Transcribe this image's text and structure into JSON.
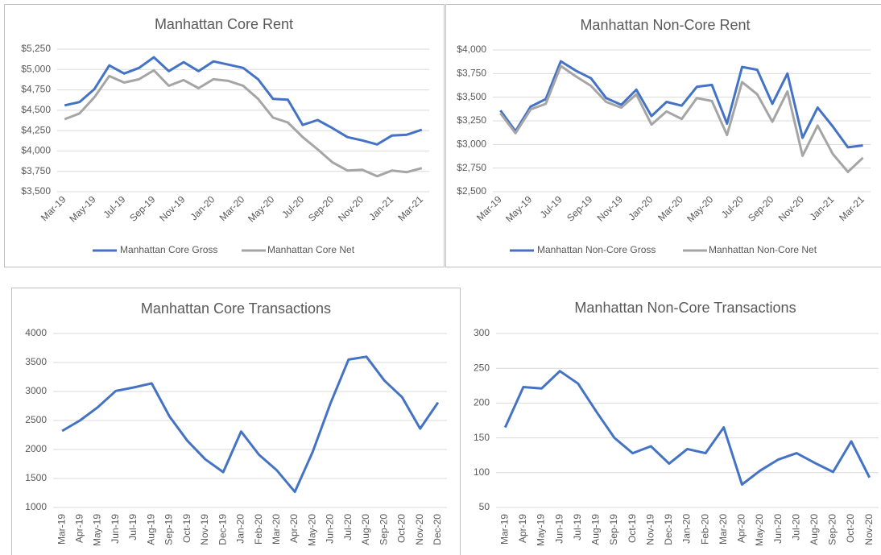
{
  "chart_data": [
    {
      "type": "line",
      "title": "Manhattan Core Rent",
      "categories": [
        "Mar-19",
        null,
        "May-19",
        null,
        "Jul-19",
        null,
        "Sep-19",
        null,
        "Nov-19",
        null,
        "Jan-20",
        null,
        "Mar-20",
        null,
        "May-20",
        null,
        "Jul-20",
        null,
        "Sep-20",
        null,
        "Nov-20",
        null,
        "Jan-21",
        null,
        "Mar-21"
      ],
      "series": [
        {
          "name": "Manhattan Core Gross",
          "color": "#4472c4",
          "values": [
            4560,
            4600,
            4760,
            5050,
            4950,
            5020,
            5150,
            4980,
            5090,
            4980,
            5100,
            5060,
            5020,
            4880,
            4640,
            4630,
            4320,
            4380,
            4280,
            4170,
            4130,
            4080,
            4190,
            4200,
            4260
          ]
        },
        {
          "name": "Manhattan Core Net",
          "color": "#a5a5a5",
          "values": [
            4390,
            4460,
            4660,
            4920,
            4840,
            4880,
            4990,
            4800,
            4870,
            4770,
            4880,
            4860,
            4800,
            4640,
            4410,
            4350,
            4170,
            4020,
            3860,
            3760,
            3770,
            3690,
            3760,
            3740,
            3790
          ]
        }
      ],
      "ylim": [
        3500,
        5250
      ],
      "yticks": [
        {
          "value": 3500,
          "label": "$3,500"
        },
        {
          "value": 3750,
          "label": "$3,750"
        },
        {
          "value": 4000,
          "label": "$4,000"
        },
        {
          "value": 4250,
          "label": "$4,250"
        },
        {
          "value": 4500,
          "label": "$4,500"
        },
        {
          "value": 4750,
          "label": "$4,750"
        },
        {
          "value": 5000,
          "label": "$5,000"
        },
        {
          "value": 5250,
          "label": "$5,250"
        }
      ],
      "grid": true,
      "legend": "bottom"
    },
    {
      "type": "line",
      "title": "Manhattan Non-Core Rent",
      "categories": [
        "Mar-19",
        null,
        "May-19",
        null,
        "Jul-19",
        null,
        "Sep-19",
        null,
        "Nov-19",
        null,
        "Jan-20",
        null,
        "Mar-20",
        null,
        "May-20",
        null,
        "Jul-20",
        null,
        "Sep-20",
        null,
        "Nov-20",
        null,
        "Jan-21",
        null,
        "Mar-21"
      ],
      "series": [
        {
          "name": "Manhattan Non-Core Gross",
          "color": "#4472c4",
          "values": [
            3360,
            3140,
            3400,
            3480,
            3880,
            3780,
            3700,
            3490,
            3420,
            3580,
            3300,
            3450,
            3410,
            3610,
            3630,
            3220,
            3820,
            3790,
            3430,
            3750,
            3070,
            3390,
            3190,
            2970,
            2990
          ]
        },
        {
          "name": "Manhattan Non-Core Net",
          "color": "#a5a5a5",
          "values": [
            3330,
            3120,
            3370,
            3430,
            3830,
            3720,
            3620,
            3450,
            3390,
            3530,
            3210,
            3350,
            3270,
            3490,
            3460,
            3100,
            3660,
            3530,
            3240,
            3560,
            2880,
            3200,
            2900,
            2710,
            2860
          ]
        }
      ],
      "ylim": [
        2500,
        4000
      ],
      "yticks": [
        {
          "value": 2500,
          "label": "$2,500"
        },
        {
          "value": 2750,
          "label": "$2,750"
        },
        {
          "value": 3000,
          "label": "$3,000"
        },
        {
          "value": 3250,
          "label": "$3,250"
        },
        {
          "value": 3500,
          "label": "$3,500"
        },
        {
          "value": 3750,
          "label": "$3,750"
        },
        {
          "value": 4000,
          "label": "$4,000"
        }
      ],
      "grid": true,
      "legend": "bottom"
    },
    {
      "type": "line",
      "title": "Manhattan Core Transactions",
      "categories": [
        "Mar-19",
        "Apr-19",
        "May-19",
        "Jun-19",
        "Jul-19",
        "Aug-19",
        "Sep-19",
        "Oct-19",
        "Nov-19",
        "Dec-19",
        "Jan-20",
        "Feb-20",
        "Mar-20",
        "Apr-20",
        "May-20",
        "Jun-20",
        "Jul-20",
        "Aug-20",
        "Sep-20",
        "Oct-20",
        "Nov-20",
        "Dec-20"
      ],
      "series": [
        {
          "color": "#4472c4",
          "values": [
            2320,
            2500,
            2730,
            3010,
            3070,
            3140,
            2570,
            2150,
            1830,
            1610,
            2310,
            1910,
            1640,
            1270,
            1960,
            2800,
            3550,
            3600,
            3190,
            2900,
            2360,
            2810
          ]
        }
      ],
      "ylim": [
        1000,
        4000
      ],
      "yticks": [
        1000,
        1500,
        2000,
        2500,
        3000,
        3500,
        4000
      ],
      "grid": true
    },
    {
      "type": "line",
      "title": "Manhattan Non-Core Transactions",
      "categories": [
        "Mar-19",
        "Apr-19",
        "May-19",
        "Jun-19",
        "Jul-19",
        "Aug-19",
        "Sep-19",
        "Oct-19",
        "Nov-19",
        "Dec-19",
        "Jan-20",
        "Feb-20",
        "Mar-20",
        "Apr-20",
        "May-20",
        "Jun-20",
        "Jul-20",
        "Aug-20",
        "Sep-20",
        "Oct-20",
        "Nov-20"
      ],
      "series": [
        {
          "color": "#4472c4",
          "values": [
            165,
            223,
            221,
            246,
            228,
            188,
            150,
            128,
            138,
            113,
            134,
            128,
            165,
            83,
            103,
            119,
            128,
            114,
            101,
            145,
            93
          ]
        }
      ],
      "ylim": [
        50,
        300
      ],
      "yticks": [
        50,
        100,
        150,
        200,
        250,
        300
      ],
      "grid": true
    }
  ]
}
